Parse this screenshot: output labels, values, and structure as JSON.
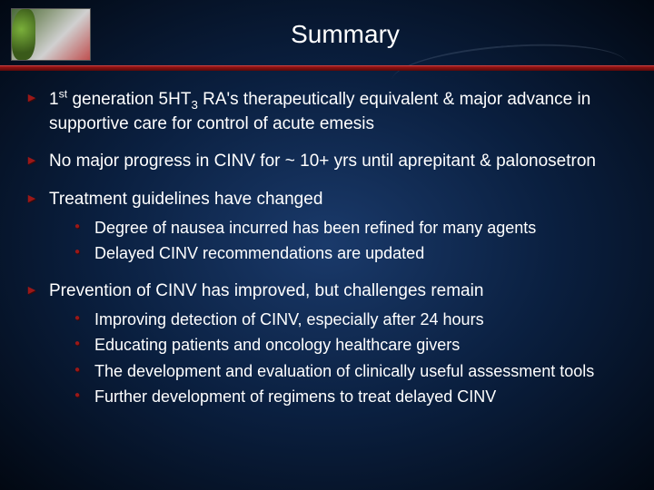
{
  "title": "Summary",
  "colors": {
    "bullet": "#9a1818",
    "bullet_shadow": "#400808",
    "underline_top": "#a01818",
    "underline_bottom": "#5a0808",
    "bg_center": "#1a3a6b",
    "bg_outer": "#020812",
    "text": "#ffffff"
  },
  "typography": {
    "title_fontsize": 28,
    "main_fontsize": 19,
    "sub_fontsize": 18,
    "font_family": "Arial"
  },
  "bullets": [
    {
      "text_pre": "1",
      "sup": "st",
      "text_mid": " generation 5HT",
      "subnum": "3",
      "text_post": " RA's therapeutically equivalent & major advance in supportive care for control of acute emesis",
      "children": []
    },
    {
      "text_pre": "No major progress in CINV for ~ 10+ yrs until aprepitant & palonosetron",
      "children": []
    },
    {
      "text_pre": "Treatment guidelines have changed",
      "children": [
        "Degree of nausea incurred has been refined for many agents",
        "Delayed CINV recommendations are updated"
      ]
    },
    {
      "text_pre": "Prevention of CINV has improved, but challenges remain",
      "children": [
        "Improving detection of CINV, especially after 24 hours",
        "Educating patients and oncology healthcare givers",
        "The development and evaluation of clinically useful assessment tools",
        "Further development of regimens to treat delayed CINV"
      ]
    }
  ]
}
